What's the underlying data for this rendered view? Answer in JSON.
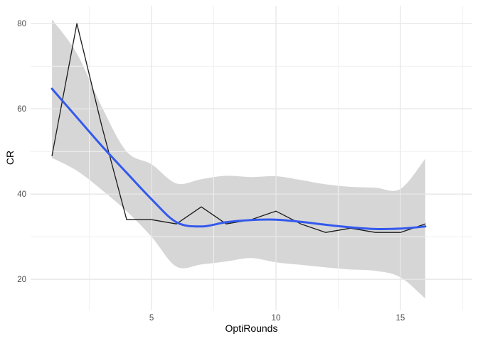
{
  "chart_data": {
    "type": "line",
    "title": "",
    "xlabel": "OptiRounds",
    "ylabel": "CR",
    "legend_position": "none",
    "x": [
      1,
      2,
      3,
      4,
      5,
      6,
      7,
      8,
      9,
      10,
      11,
      12,
      13,
      14,
      15,
      16
    ],
    "series": [
      {
        "name": "CR raw line",
        "style": "polyline",
        "color": "#1b1b1b",
        "width": 1.3,
        "values": [
          49,
          80,
          56,
          34,
          34,
          33,
          37,
          33,
          34,
          36,
          33,
          31,
          32,
          31,
          31,
          33
        ]
      },
      {
        "name": "smooth trend",
        "style": "smooth",
        "color": "#3359EC",
        "width": 3,
        "values": [
          64.7,
          58.0,
          51.3,
          45.0,
          38.8,
          33.4,
          32.4,
          33.4,
          33.9,
          34.0,
          33.5,
          32.8,
          32.2,
          31.8,
          31.9,
          32.4
        ]
      }
    ],
    "ribbon": {
      "name": "confidence band",
      "fill": "#d6d6d6",
      "upper": [
        81,
        73,
        60.5,
        50,
        47,
        42.5,
        43.5,
        44.3,
        44,
        44.2,
        43.3,
        42.3,
        41.7,
        41.5,
        41.2,
        48.3
      ],
      "lower": [
        48.5,
        45.5,
        41,
        36,
        30,
        23,
        23.5,
        24.2,
        25,
        24,
        23.4,
        22.8,
        22.3,
        22,
        20.5,
        15.5
      ]
    },
    "axes": {
      "x": {
        "label": "OptiRounds",
        "domain": [
          0.14,
          17.89
        ],
        "major_ticks": [
          5,
          10,
          15
        ],
        "major_tick_labels": [
          "5",
          "10",
          "15"
        ],
        "minor_ticks": [
          2.5,
          7.5,
          12.5,
          17.5
        ]
      },
      "y": {
        "label": "CR",
        "domain": [
          12.7,
          84.2
        ],
        "major_ticks": [
          20,
          40,
          60,
          80
        ],
        "major_tick_labels": [
          "20",
          "40",
          "60",
          "80"
        ],
        "minor_ticks": [
          30,
          50,
          70
        ]
      }
    },
    "grid": {
      "on": true,
      "major_color": "#e7e7e7",
      "minor_color": "#f1f1f1",
      "background": "#ffffff",
      "tick_label_color": "#4d4d4d"
    }
  }
}
